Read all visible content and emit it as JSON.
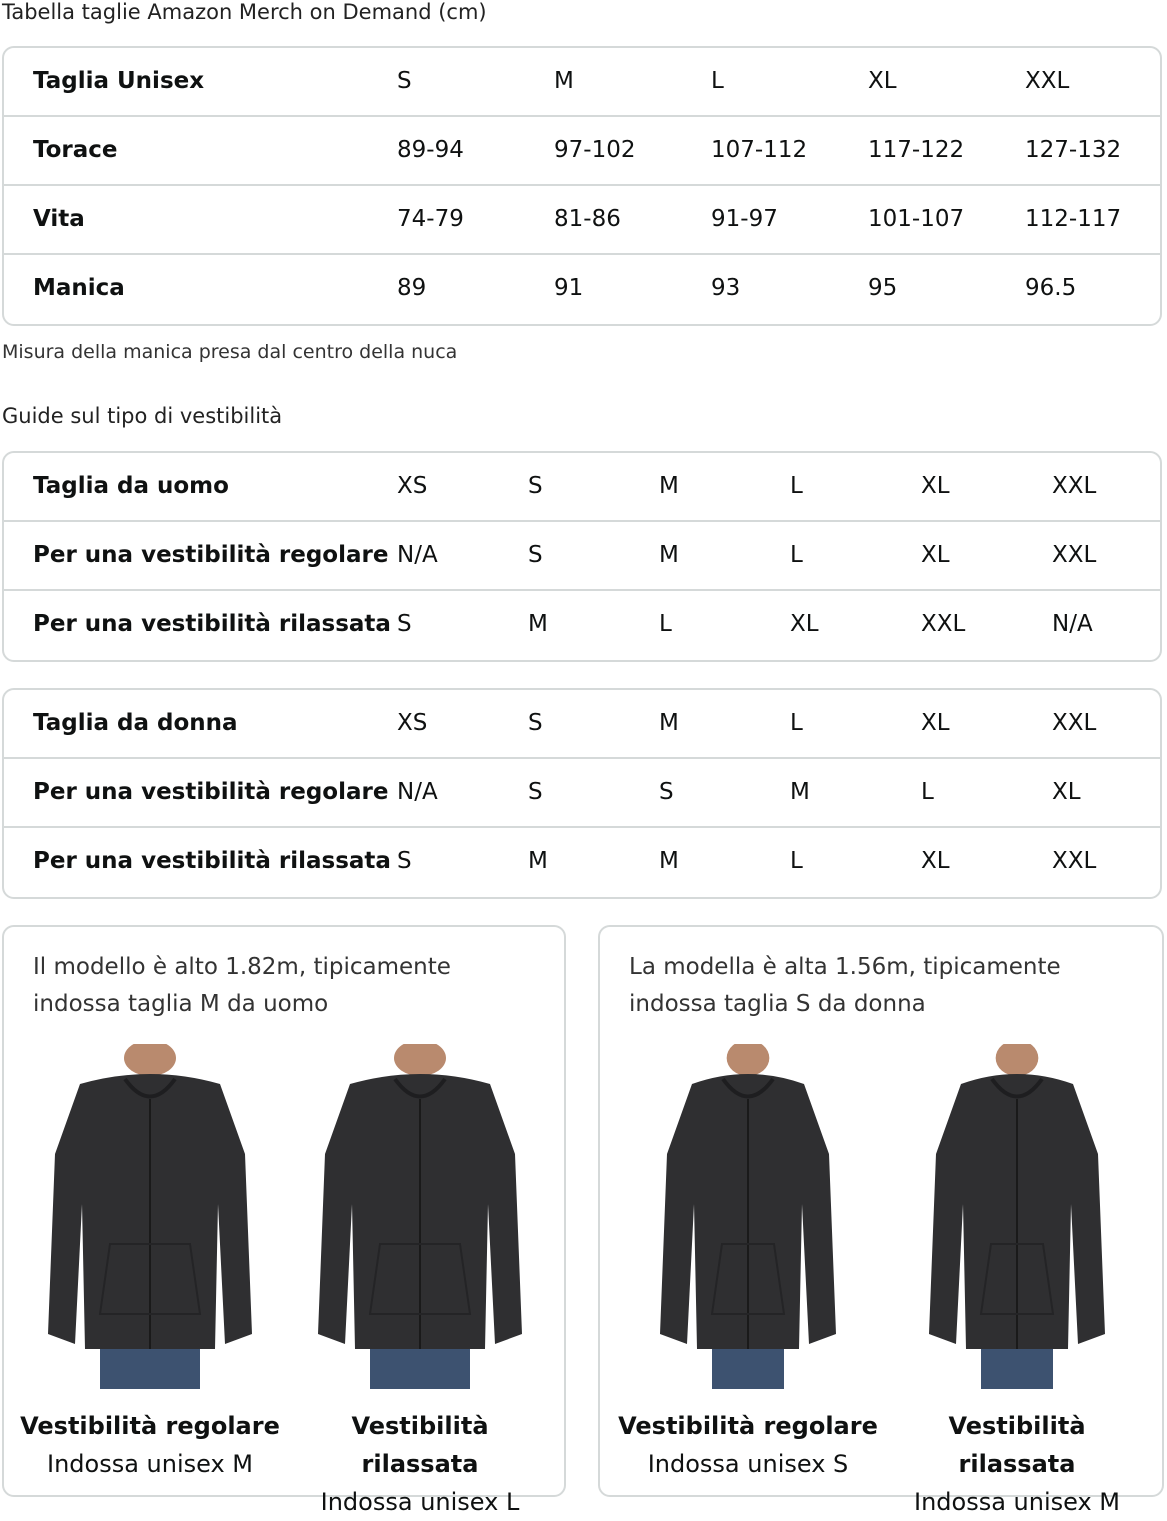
{
  "title": "Tabella taglie Amazon Merch on Demand (cm)",
  "unisex_table": {
    "rows": [
      [
        "Taglia Unisex",
        "S",
        "M",
        "L",
        "XL",
        "XXL"
      ],
      [
        "Torace",
        "89-94",
        "97-102",
        "107-112",
        "117-122",
        "127-132"
      ],
      [
        "Vita",
        "74-79",
        "81-86",
        "91-97",
        "101-107",
        "112-117"
      ],
      [
        "Manica",
        "89",
        "91",
        "93",
        "95",
        "96.5"
      ]
    ]
  },
  "sleeve_note": "Misura della manica presa dal centro della nuca",
  "fit_guide_title": "Guide sul tipo di vestibilità",
  "men_table": {
    "rows": [
      [
        "Taglia da uomo",
        "XS",
        "S",
        "M",
        "L",
        "XL",
        "XXL"
      ],
      [
        "Per una vestibilità regolare",
        "N/A",
        "S",
        "M",
        "L",
        "XL",
        "XXL"
      ],
      [
        "Per una vestibilità rilassata",
        "S",
        "M",
        "L",
        "XL",
        "XXL",
        "N/A"
      ]
    ]
  },
  "women_table": {
    "rows": [
      [
        "Taglia da donna",
        "XS",
        "S",
        "M",
        "L",
        "XL",
        "XXL"
      ],
      [
        "Per una vestibilità regolare",
        "N/A",
        "S",
        "S",
        "M",
        "L",
        "XL"
      ],
      [
        "Per una vestibilità rilassata",
        "S",
        "M",
        "M",
        "L",
        "XL",
        "XXL"
      ]
    ]
  },
  "cards": [
    {
      "text_line1": "Il modello è alto 1.82m, tipicamente",
      "text_line2": "indossa taglia M da uomo",
      "figures": [
        {
          "fit": "Vestibilità regolare",
          "size": "Indossa unisex M"
        },
        {
          "fit": "Vestibilità rilassata",
          "size": "Indossa unisex L"
        }
      ]
    },
    {
      "text_line1": "La modella è alta 1.56m, tipicamente",
      "text_line2": "indossa taglia S da donna",
      "figures": [
        {
          "fit": "Vestibilità regolare",
          "size": "Indossa unisex S"
        },
        {
          "fit": "Vestibilità rilassata",
          "size": "Indossa unisex M"
        }
      ]
    }
  ],
  "colors": {
    "border": "#d5d9d9",
    "hoodie": "#2f2f31",
    "jeans": "#3d5270"
  }
}
